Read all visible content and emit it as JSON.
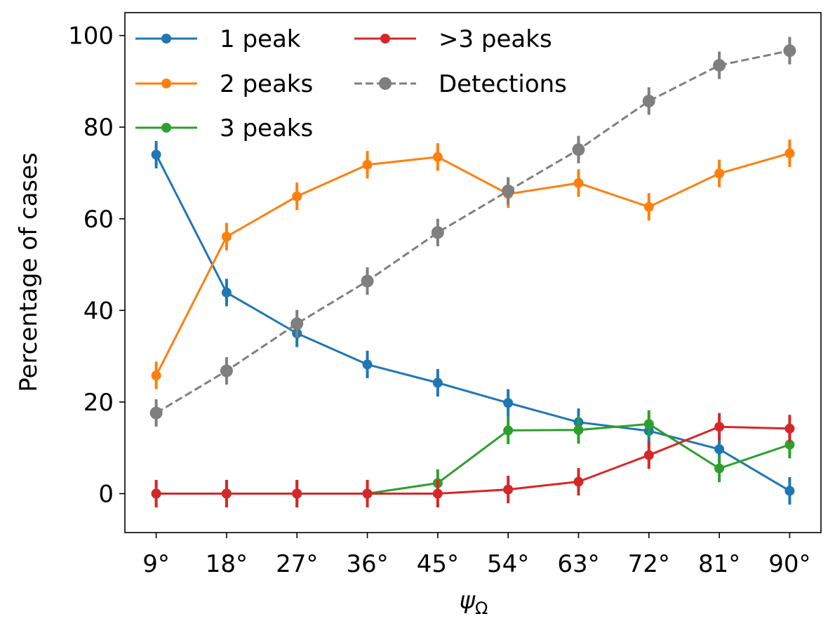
{
  "chart_data": {
    "type": "line",
    "title": "",
    "xlabel": "ψ",
    "xlabel_subscript": "Ω",
    "ylabel": "Percentage of cases",
    "categories": [
      "9°",
      "18°",
      "27°",
      "36°",
      "45°",
      "54°",
      "63°",
      "72°",
      "81°",
      "90°"
    ],
    "x": [
      9,
      18,
      27,
      36,
      45,
      54,
      63,
      72,
      81,
      90
    ],
    "xlim": [
      5,
      94
    ],
    "ylim": [
      -8.5,
      105
    ],
    "yticks": [
      0,
      20,
      40,
      60,
      80,
      100
    ],
    "yticklabels": [
      "0",
      "20",
      "40",
      "60",
      "80",
      "100"
    ],
    "legend_location": "upper-left",
    "series": [
      {
        "name": "1 peak",
        "color": "#1f77b4",
        "style": "solid",
        "values": [
          74.0,
          43.9,
          35.0,
          28.2,
          24.2,
          19.8,
          15.6,
          13.7,
          9.7,
          0.6
        ],
        "errors": [
          3.0,
          3.0,
          3.0,
          3.0,
          3.0,
          3.0,
          3.0,
          3.0,
          3.0,
          3.0
        ]
      },
      {
        "name": "2 peaks",
        "color": "#ff7f0e",
        "style": "solid",
        "values": [
          25.8,
          56.1,
          64.9,
          71.8,
          73.5,
          65.4,
          67.8,
          62.6,
          69.9,
          74.3
        ],
        "errors": [
          3.0,
          3.0,
          3.0,
          3.0,
          3.0,
          3.0,
          3.0,
          3.0,
          3.0,
          3.0
        ]
      },
      {
        "name": "3 peaks",
        "color": "#2ca02c",
        "style": "solid",
        "values": [
          0.0,
          0.0,
          0.0,
          0.0,
          2.3,
          13.8,
          13.9,
          15.2,
          5.5,
          10.7
        ],
        "errors": [
          3.0,
          3.0,
          3.0,
          3.0,
          3.0,
          3.0,
          3.0,
          3.0,
          3.0,
          3.0
        ]
      },
      {
        "name": ">3 peaks",
        "color": "#d62728",
        "style": "solid",
        "values": [
          0.0,
          0.0,
          0.0,
          0.0,
          0.0,
          0.9,
          2.6,
          8.4,
          14.6,
          14.2
        ],
        "errors": [
          3.0,
          3.0,
          3.0,
          3.0,
          3.0,
          3.0,
          3.0,
          3.0,
          3.0,
          3.0
        ]
      },
      {
        "name": "Detections",
        "color": "#7f7f7f",
        "style": "dashed",
        "values": [
          17.6,
          26.8,
          37.1,
          46.4,
          57.0,
          66.1,
          75.1,
          85.7,
          93.5,
          96.7
        ],
        "errors": [
          3.0,
          3.0,
          3.0,
          3.0,
          3.0,
          3.0,
          3.0,
          3.0,
          3.0,
          3.0
        ]
      }
    ]
  }
}
